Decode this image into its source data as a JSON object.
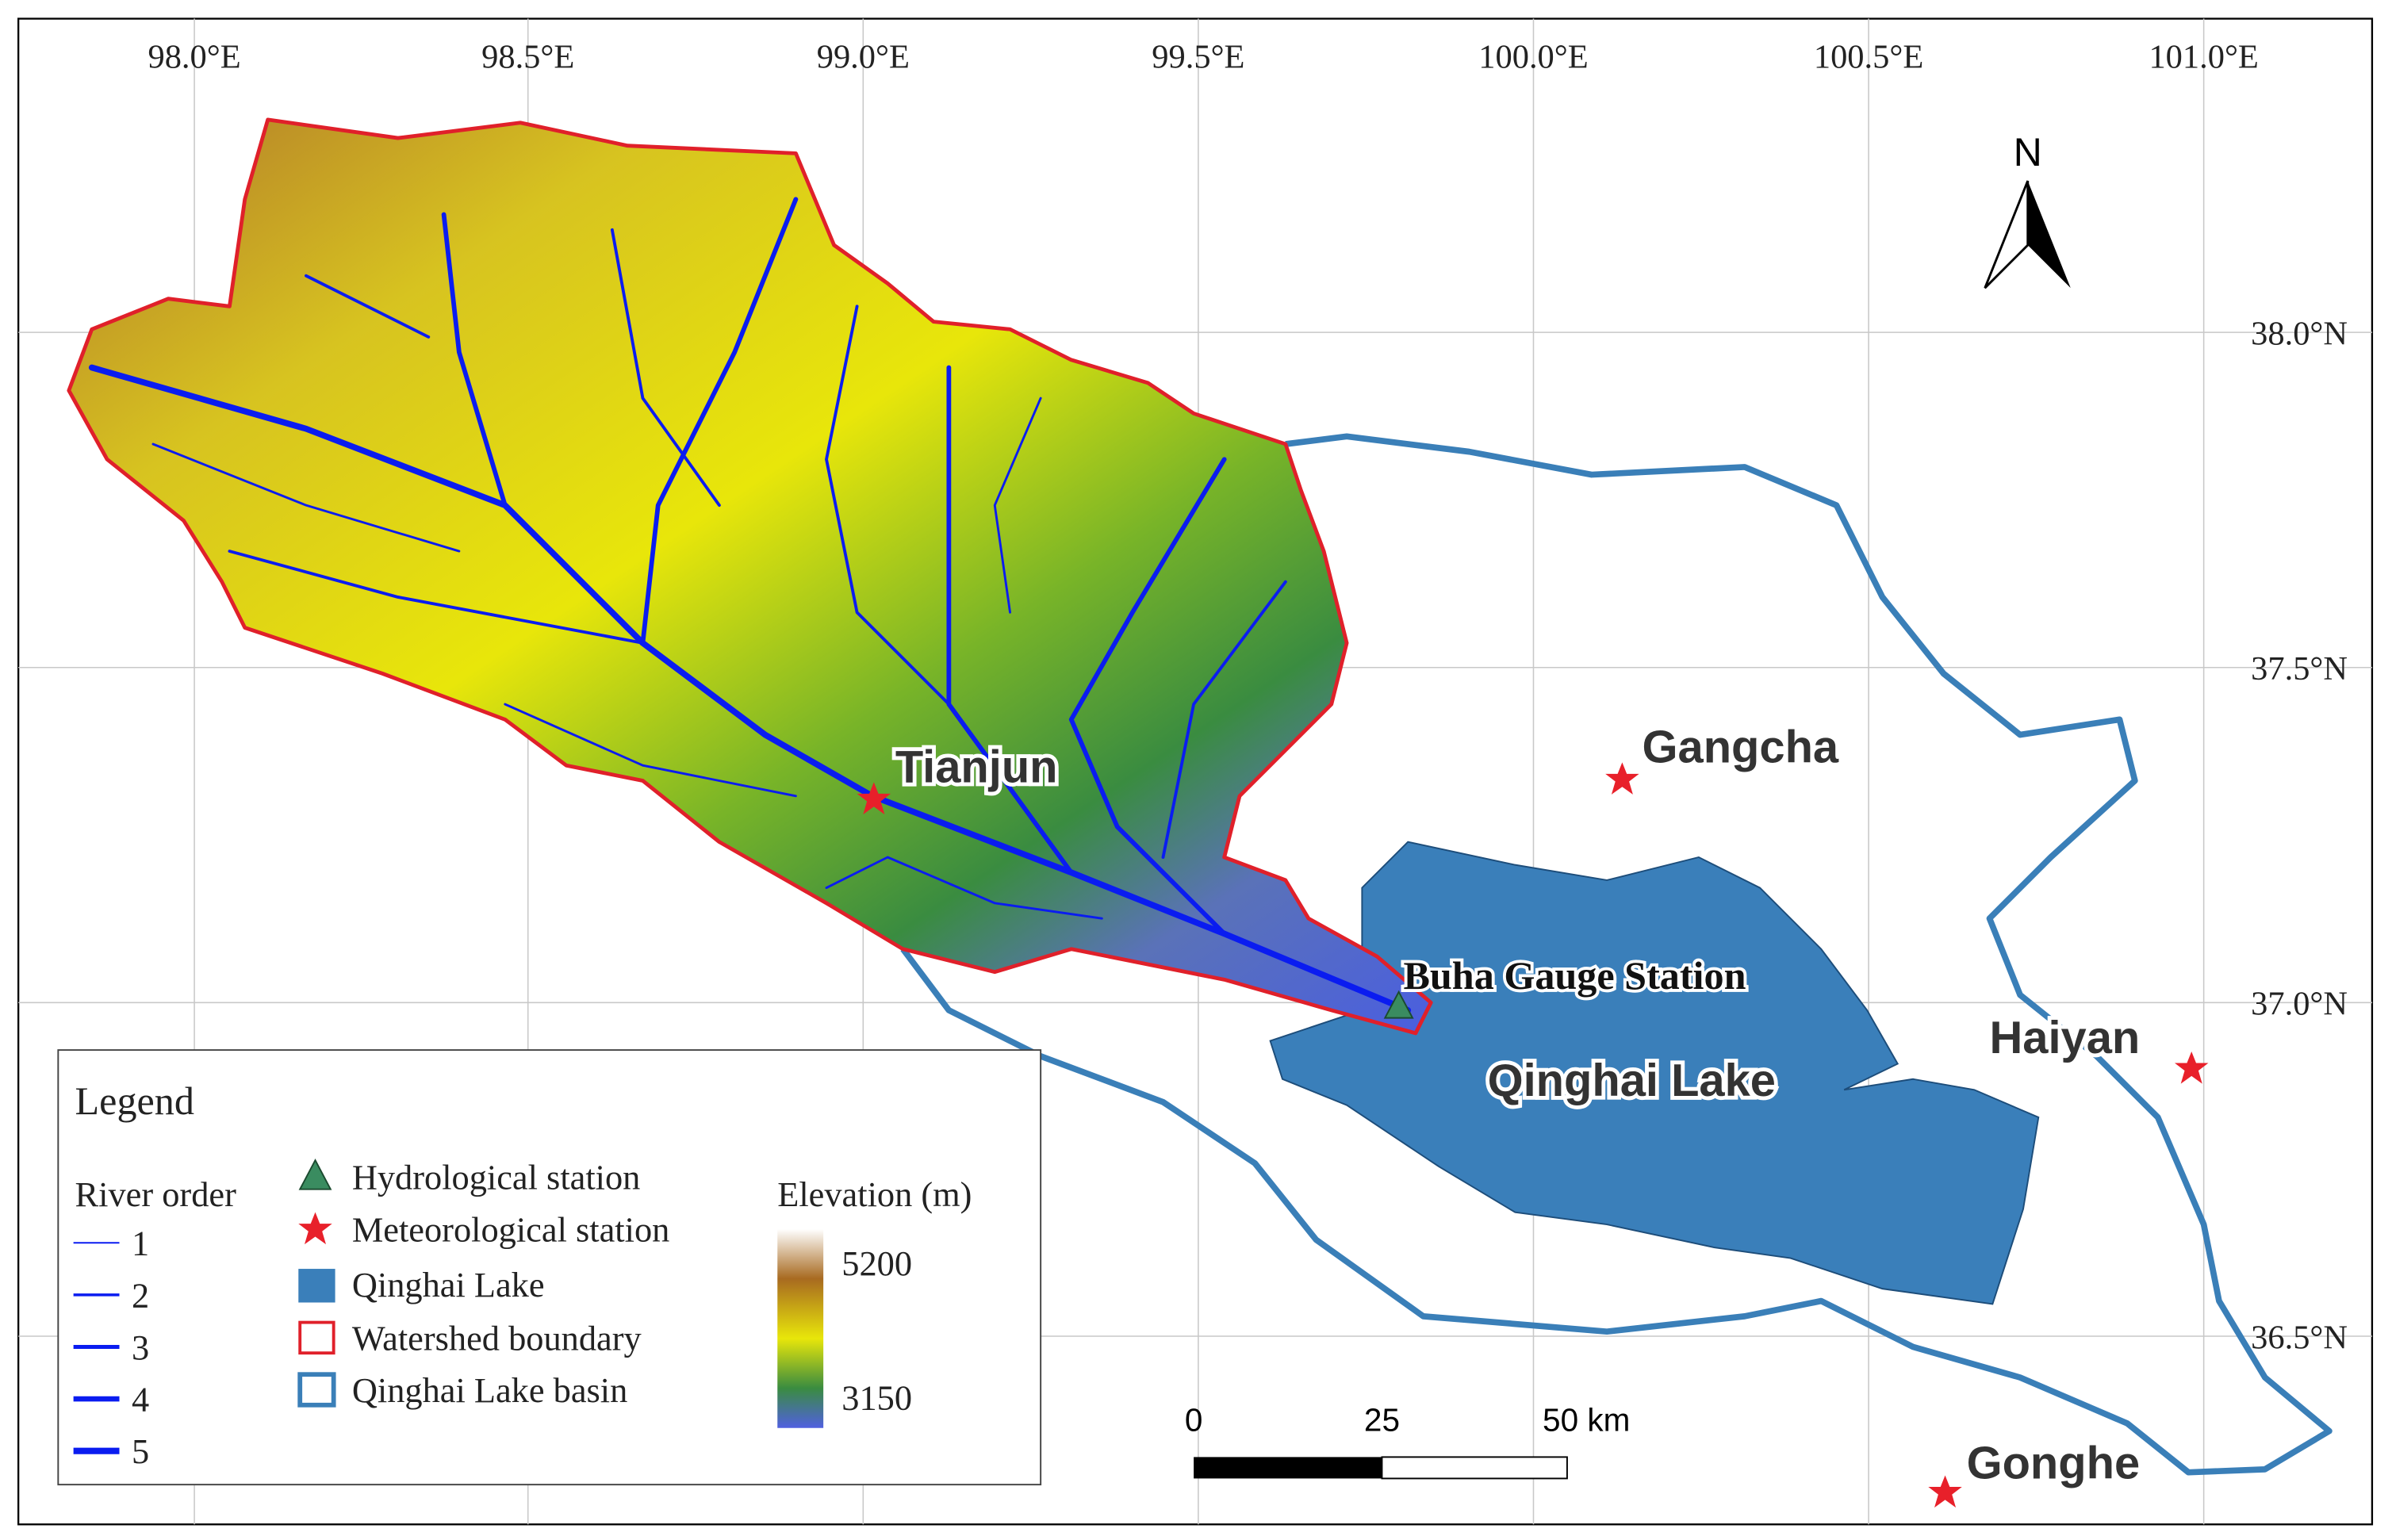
{
  "longitude_labels": [
    "98.0°E",
    "98.5°E",
    "99.0°E",
    "99.5°E",
    "100.0°E",
    "100.5°E",
    "101.0°E"
  ],
  "latitude_labels": [
    "38.0°N",
    "37.5°N",
    "37.0°N",
    "36.5°N"
  ],
  "north_label": "N",
  "places": {
    "tianjun": "Tianjun",
    "gangcha": "Gangcha",
    "haiyan": "Haiyan",
    "gonghe": "Gonghe"
  },
  "station_label": "Buha Gauge Station",
  "lake_label": "Qinghai Lake",
  "scale_bar": {
    "labels": [
      "0",
      "25",
      "50 km"
    ]
  },
  "legend": {
    "title": "Legend",
    "river_order_title": "River order",
    "river_orders": [
      "1",
      "2",
      "3",
      "4",
      "5"
    ],
    "items": [
      "Hydrological station",
      "Meteorological station",
      "Qinghai Lake",
      "Watershed boundary",
      "Qinghai Lake basin"
    ],
    "elevation_title": "Elevation (m)",
    "elevation_max": "5200",
    "elevation_min": "3150"
  }
}
